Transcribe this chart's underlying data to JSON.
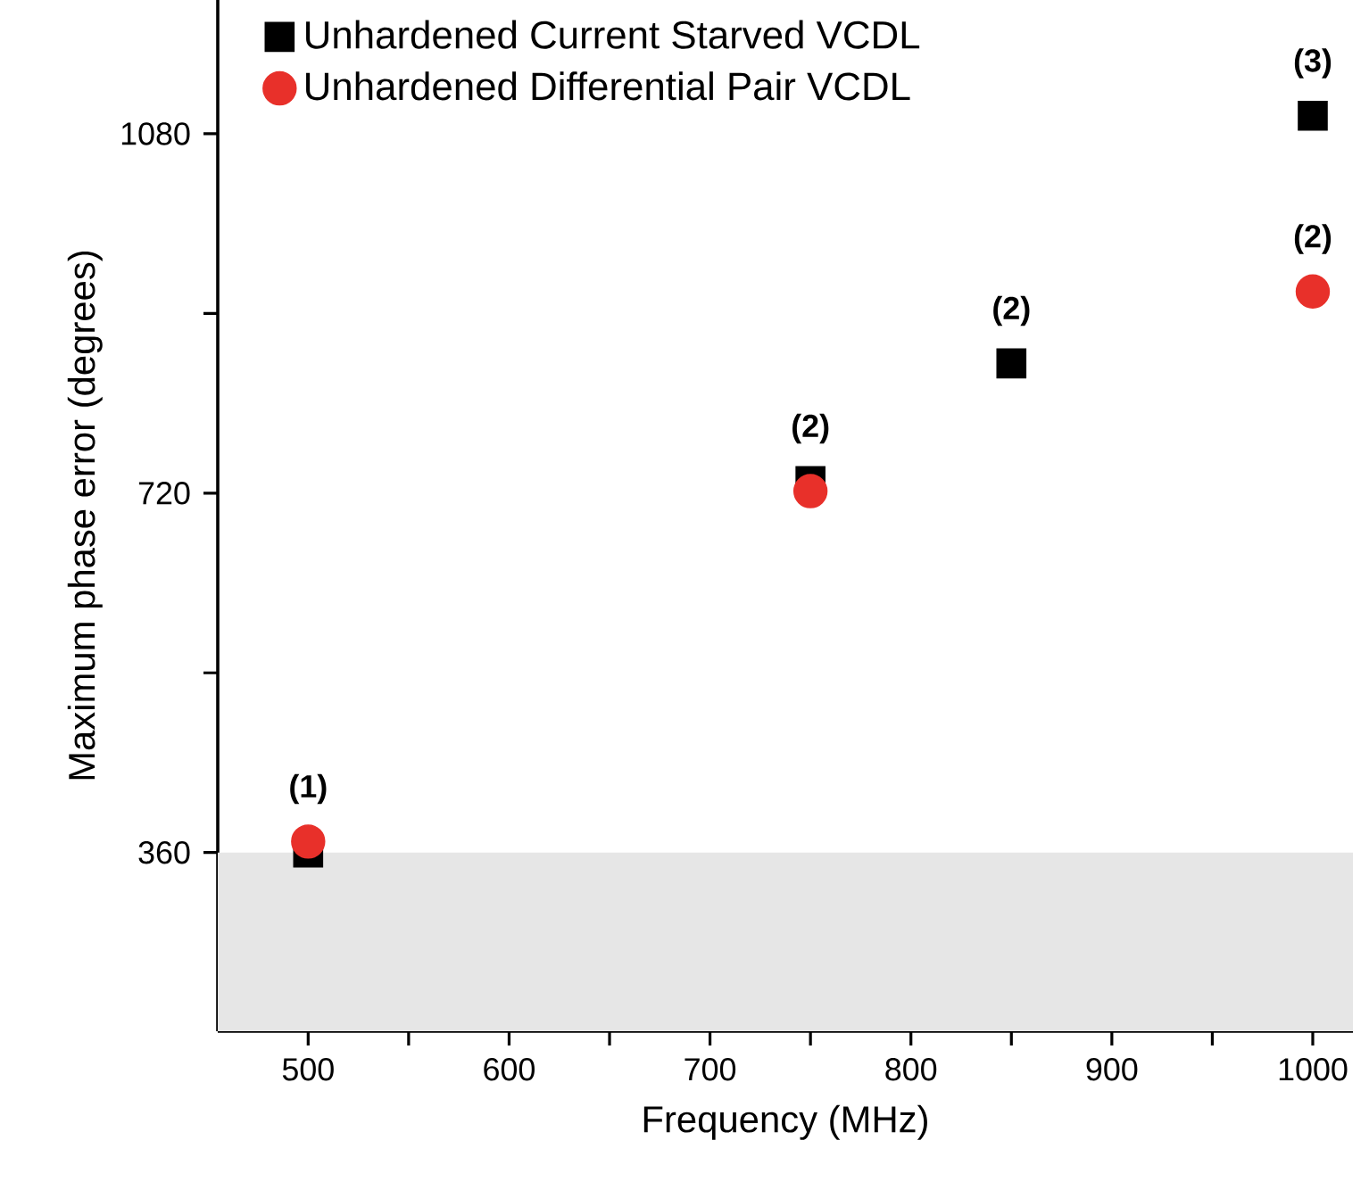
{
  "chart_data": {
    "type": "scatter",
    "xlabel": "Frequency (MHz)",
    "ylabel": "Maximum phase error (degrees)",
    "xlim": [
      455,
      1020
    ],
    "ylim": [
      181,
      1214
    ],
    "xticks": [
      500,
      {
        "value": 550,
        "label": null
      },
      600,
      {
        "value": 650,
        "label": null
      },
      700,
      {
        "value": 750,
        "label": null
      },
      800,
      {
        "value": 850,
        "label": null
      },
      900,
      {
        "value": 950,
        "label": null
      },
      1000
    ],
    "yticks": [
      360,
      {
        "value": 540,
        "label": null
      },
      720,
      {
        "value": 900,
        "label": null
      },
      1080
    ],
    "series": [
      {
        "name": "Unhardened Current Starved VCDL",
        "color": "#000000",
        "marker": "square",
        "x": [
          500,
          750,
          850,
          1000
        ],
        "values": [
          360,
          732,
          850,
          1098
        ]
      },
      {
        "name": "Unhardened Differential Pair VCDL",
        "color": "#e8302a",
        "marker": "circle",
        "x": [
          500,
          750,
          1000
        ],
        "values": [
          371,
          722,
          922
        ]
      }
    ],
    "bands": [
      {
        "axis": "y",
        "from": 181,
        "to": 360,
        "color": "#e6e6e6"
      }
    ],
    "annotations": [
      {
        "text": "(1)",
        "x": 500,
        "y": 371
      },
      {
        "text": "(2)",
        "x": 750,
        "y": 732
      },
      {
        "text": "(2)",
        "x": 850,
        "y": 850
      },
      {
        "text": "(3)",
        "x": 1000,
        "y": 1098
      },
      {
        "text": "(2)",
        "x": 1000,
        "y": 922
      }
    ],
    "legend": "top left",
    "grid": false
  }
}
